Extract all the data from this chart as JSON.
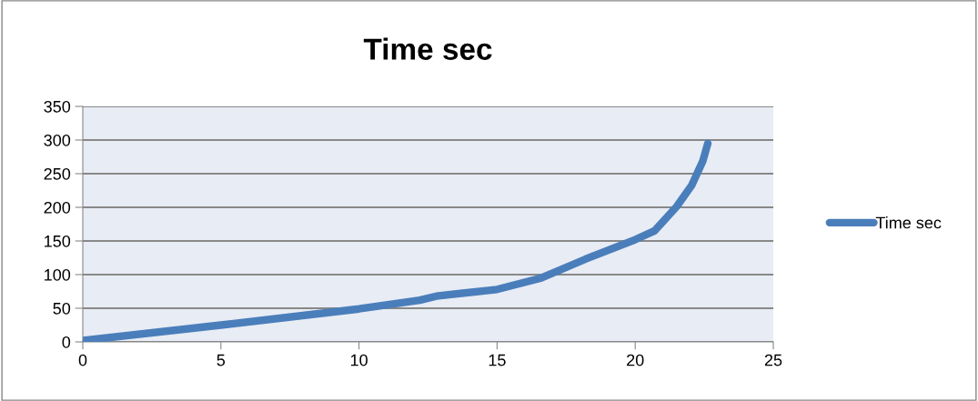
{
  "chart_data": {
    "type": "line",
    "title": "Time sec",
    "x": [
      0,
      5,
      10,
      12.2,
      12.8,
      15,
      16.6,
      18.2,
      20,
      20.7,
      21.5,
      22.05,
      22.45,
      22.63
    ],
    "series": [
      {
        "name": "Time sec",
        "color": "#4a7ebb",
        "values": [
          2,
          25,
          49,
          62,
          68,
          78,
          95,
          123,
          152,
          165,
          201,
          233,
          269,
          295
        ]
      }
    ],
    "xlim": [
      0,
      25
    ],
    "xticks": [
      0,
      5,
      10,
      15,
      20,
      25
    ],
    "ylim": [
      0,
      350
    ],
    "yticks": [
      0,
      50,
      100,
      150,
      200,
      250,
      300,
      350
    ],
    "grid": "y",
    "legend": "right",
    "marker": "none",
    "line_style": "solid"
  }
}
